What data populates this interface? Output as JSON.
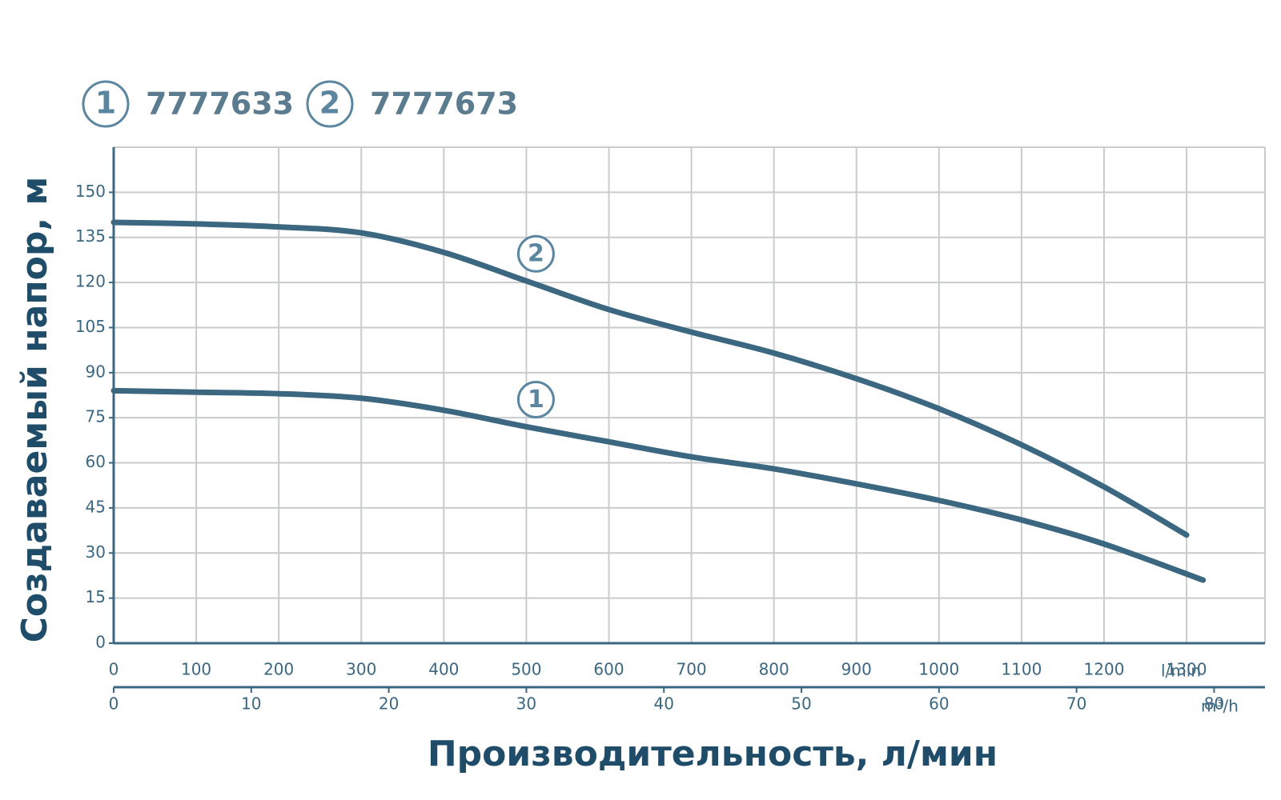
{
  "chart_data": {
    "type": "line",
    "xlabel": "Производительность, л/мин",
    "ylabel": "Создаваемый напор, м",
    "xunit": "l/min",
    "x2unit": "m³/h",
    "xlim": [
      0,
      1395
    ],
    "xticks": [
      0,
      100,
      200,
      300,
      400,
      500,
      600,
      700,
      800,
      900,
      1000,
      1100,
      1200,
      1300
    ],
    "x2lim": [
      0,
      83.7
    ],
    "x2ticks": [
      0,
      10,
      20,
      30,
      40,
      50,
      60,
      70,
      80
    ],
    "ylim": [
      0,
      165
    ],
    "yticks": [
      0,
      15,
      30,
      45,
      60,
      75,
      90,
      105,
      120,
      135,
      150
    ],
    "grid": true,
    "series": [
      {
        "name": "7777633",
        "label": "1",
        "color": "#3b6780",
        "x": [
          0,
          100,
          200,
          300,
          400,
          500,
          600,
          700,
          800,
          900,
          1000,
          1100,
          1200,
          1320
        ],
        "values": [
          84,
          83.5,
          83,
          81.5,
          77.5,
          72,
          67,
          62,
          58,
          53,
          47.5,
          41,
          33,
          21
        ]
      },
      {
        "name": "7777673",
        "label": "2",
        "color": "#3b6780",
        "x": [
          0,
          100,
          200,
          300,
          400,
          500,
          600,
          700,
          800,
          900,
          1000,
          1100,
          1200,
          1300
        ],
        "values": [
          140,
          139.5,
          138.5,
          136.5,
          130,
          120.5,
          111,
          103.5,
          96.5,
          88,
          78,
          66,
          52,
          36
        ]
      }
    ]
  }
}
